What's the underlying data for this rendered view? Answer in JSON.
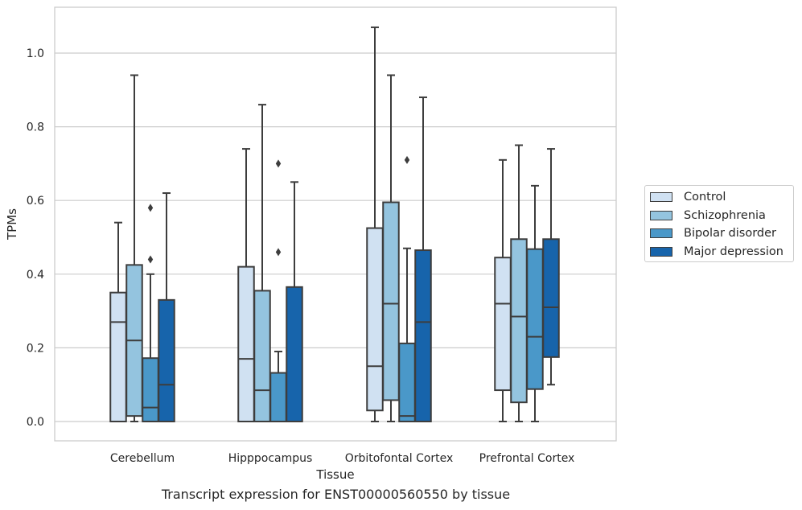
{
  "chart_data": {
    "type": "box",
    "title": "",
    "caption": "Transcript expression for ENST00000560550 by tissue",
    "xlabel": "Tissue",
    "ylabel": "TPMs",
    "ylim": [
      -0.05,
      1.13
    ],
    "yticks": [
      "0.0",
      "0.2",
      "0.4",
      "0.6",
      "0.8",
      "1.0"
    ],
    "ytick_values": [
      0.0,
      0.2,
      0.4,
      0.6,
      0.8,
      1.0
    ],
    "grid": "horizontal",
    "legend_position": "right",
    "categories": [
      "Cerebellum",
      "Hipppocampus",
      "Orbitofontal Cortex",
      "Prefrontal Cortex"
    ],
    "series": [
      {
        "name": "Control",
        "color": "#d0e1f2",
        "boxes": [
          {
            "whislo": 0.0,
            "q1": 0.0,
            "med": 0.27,
            "q3": 0.35,
            "whishi": 0.54,
            "fliers": []
          },
          {
            "whislo": 0.0,
            "q1": 0.0,
            "med": 0.17,
            "q3": 0.42,
            "whishi": 0.74,
            "fliers": []
          },
          {
            "whislo": 0.0,
            "q1": 0.03,
            "med": 0.15,
            "q3": 0.525,
            "whishi": 1.07,
            "fliers": []
          },
          {
            "whislo": 0.0,
            "q1": 0.085,
            "med": 0.32,
            "q3": 0.445,
            "whishi": 0.71,
            "fliers": []
          }
        ]
      },
      {
        "name": "Schizophrenia",
        "color": "#94c4df",
        "boxes": [
          {
            "whislo": 0.0,
            "q1": 0.015,
            "med": 0.22,
            "q3": 0.425,
            "whishi": 0.94,
            "fliers": []
          },
          {
            "whislo": 0.0,
            "q1": 0.0,
            "med": 0.085,
            "q3": 0.355,
            "whishi": 0.86,
            "fliers": []
          },
          {
            "whislo": 0.0,
            "q1": 0.058,
            "med": 0.32,
            "q3": 0.595,
            "whishi": 0.94,
            "fliers": []
          },
          {
            "whislo": 0.0,
            "q1": 0.052,
            "med": 0.285,
            "q3": 0.495,
            "whishi": 0.75,
            "fliers": []
          }
        ]
      },
      {
        "name": "Bipolar disorder",
        "color": "#4a98c9",
        "boxes": [
          {
            "whislo": 0.0,
            "q1": 0.0,
            "med": 0.038,
            "q3": 0.172,
            "whishi": 0.4,
            "fliers": [
              0.44,
              0.58
            ]
          },
          {
            "whislo": 0.0,
            "q1": 0.0,
            "med": 0.0,
            "q3": 0.132,
            "whishi": 0.19,
            "fliers": [
              0.46,
              0.7
            ]
          },
          {
            "whislo": 0.0,
            "q1": 0.0,
            "med": 0.015,
            "q3": 0.212,
            "whishi": 0.47,
            "fliers": [
              0.71
            ]
          },
          {
            "whislo": 0.0,
            "q1": 0.088,
            "med": 0.23,
            "q3": 0.468,
            "whishi": 0.64,
            "fliers": []
          }
        ]
      },
      {
        "name": "Major depression",
        "color": "#1764ab",
        "boxes": [
          {
            "whislo": 0.0,
            "q1": 0.0,
            "med": 0.1,
            "q3": 0.33,
            "whishi": 0.62,
            "fliers": []
          },
          {
            "whislo": 0.0,
            "q1": 0.0,
            "med": 0.0,
            "q3": 0.365,
            "whishi": 0.65,
            "fliers": []
          },
          {
            "whislo": 0.0,
            "q1": 0.0,
            "med": 0.27,
            "q3": 0.465,
            "whishi": 0.88,
            "fliers": []
          },
          {
            "whislo": 0.1,
            "q1": 0.175,
            "med": 0.31,
            "q3": 0.495,
            "whishi": 0.74,
            "fliers": []
          }
        ]
      }
    ]
  }
}
